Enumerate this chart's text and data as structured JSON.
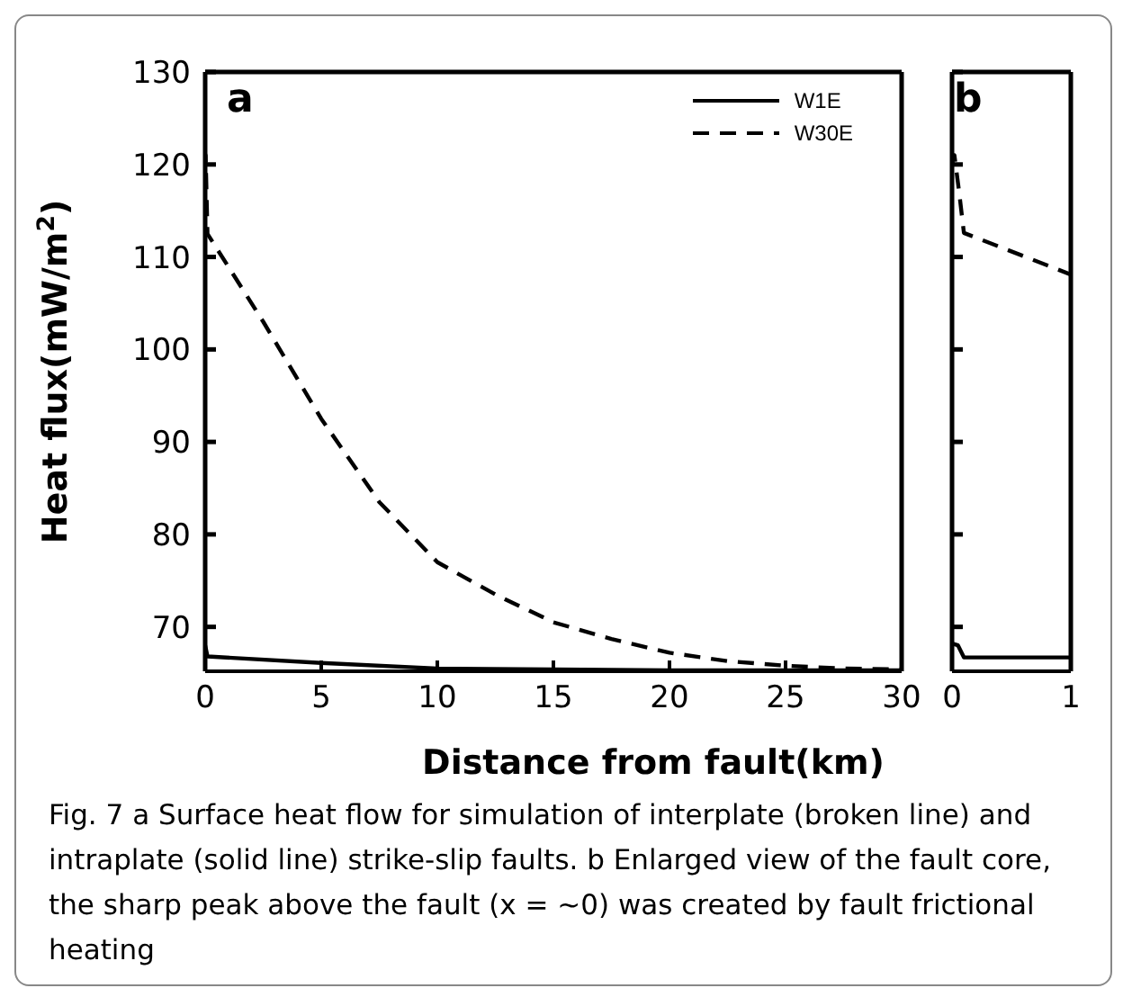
{
  "chart_data": [
    {
      "type": "line",
      "title": "a",
      "xlabel": "Distance from fault(km)",
      "ylabel": "Heat flux(mW/m$^{2}$)",
      "xlim": [
        0,
        30
      ],
      "xticks": [
        0,
        5,
        10,
        15,
        20,
        25,
        30
      ],
      "ylim": [
        65.2,
        130
      ],
      "yticks": [
        70,
        80,
        90,
        100,
        110,
        120,
        130
      ],
      "grid": false,
      "legend": "top right",
      "marker": "none",
      "series": [
        {
          "name": "W1E",
          "color": "#000000",
          "line_style": "solid",
          "x": [
            0,
            0.1,
            5,
            10,
            15,
            20,
            30
          ],
          "values": [
            68,
            66.8,
            66.1,
            65.5,
            65.4,
            65.3,
            65.3
          ]
        },
        {
          "name": "W30E",
          "color": "#000000",
          "line_style": "dashed",
          "x": [
            0,
            0.02,
            0.1,
            2.5,
            5,
            7.5,
            10,
            12.5,
            15,
            17.5,
            20,
            22.5,
            25,
            27.5,
            30
          ],
          "values": [
            120,
            121,
            112.5,
            103,
            92.5,
            83.5,
            77,
            73.5,
            70.5,
            68.7,
            67.2,
            66.3,
            65.8,
            65.5,
            65.4
          ]
        }
      ],
      "annotations": [
        "Fig. 7  a Surface heat flow for simulation of interplate (broken line) and intraplate (solid line) strike-slip faults. b Enlarged view of the fault core, the sharp peak above the fault (x = ∼0) was created by fault frictional heating"
      ]
    },
    {
      "type": "line",
      "title": "b",
      "xlim": [
        0,
        1
      ],
      "xticks": [
        0,
        1
      ],
      "ylim": [
        65.2,
        130
      ],
      "yticks": [
        70,
        80,
        90,
        100,
        110,
        120,
        130
      ],
      "grid": false,
      "legend": false,
      "tick_labels": "x",
      "marker": "none",
      "series": [
        {
          "color": "#000000",
          "line_style": "solid",
          "x": [
            0,
            0.05,
            0.1,
            1
          ],
          "values": [
            68.2,
            68,
            66.7,
            66.7
          ]
        },
        {
          "color": "#000000",
          "line_style": "dashed",
          "x": [
            0,
            0.02,
            0.06,
            0.1,
            1
          ],
          "values": [
            120,
            121,
            117,
            112.6,
            108.1
          ]
        }
      ]
    }
  ]
}
